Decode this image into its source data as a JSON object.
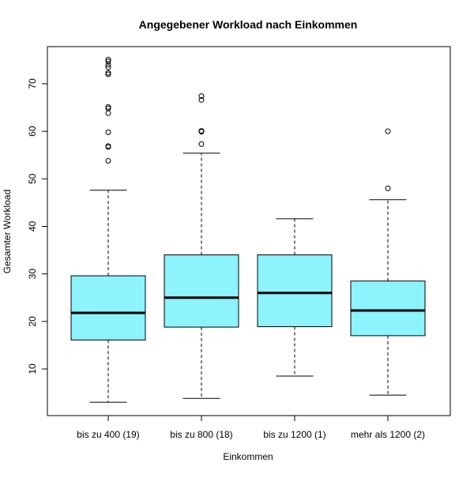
{
  "chart_data": {
    "type": "box",
    "title": "Angegebener Workload nach Einkommen",
    "xlabel": "Einkommen",
    "ylabel": "Gesamter Workload",
    "ylim": [
      0,
      76
    ],
    "yticks": [
      10,
      20,
      30,
      40,
      50,
      60,
      70
    ],
    "box_color": "#8DF3FC",
    "categories": [
      "bis zu 400 (19)",
      "bis zu 800 (18)",
      "bis zu 1200 (1)",
      "mehr als 1200 (2)"
    ],
    "boxes": [
      {
        "category": "bis zu 400 (19)",
        "whisker_low": 3,
        "q1": 16.1,
        "median": 21.8,
        "q3": 29.6,
        "whisker_high": 47.6,
        "outliers": [
          53.8,
          56.7,
          56.9,
          59.8,
          63.8,
          64.8,
          65.1,
          72.0,
          72.3,
          73.5,
          74.0,
          74.7,
          75.1
        ]
      },
      {
        "category": "bis zu 800 (18)",
        "whisker_low": 3.8,
        "q1": 18.8,
        "median": 25.0,
        "q3": 34.0,
        "whisker_high": 55.4,
        "outliers": [
          57.3,
          59.9,
          60.1,
          66.6,
          67.4
        ]
      },
      {
        "category": "bis zu 1200 (1)",
        "whisker_low": 8.5,
        "q1": 18.9,
        "median": 26.0,
        "q3": 34.0,
        "whisker_high": 41.6,
        "outliers": []
      },
      {
        "category": "mehr als 1200 (2)",
        "whisker_low": 4.5,
        "q1": 17.0,
        "median": 22.3,
        "q3": 28.5,
        "whisker_high": 45.6,
        "outliers": [
          48.0,
          60.0
        ]
      }
    ]
  }
}
